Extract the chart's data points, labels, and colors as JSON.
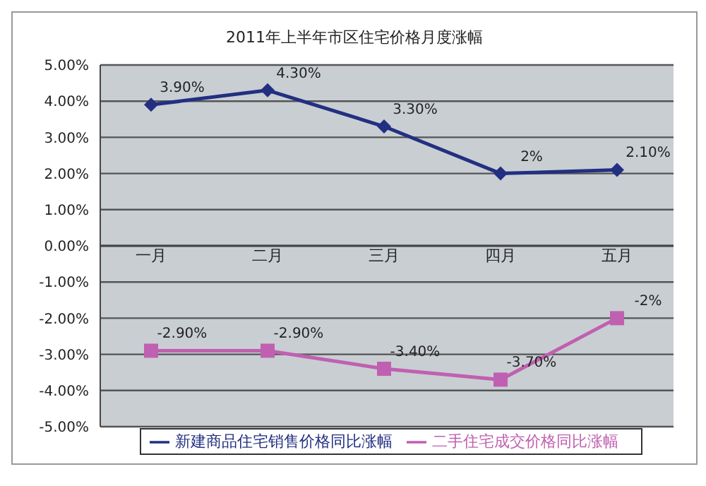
{
  "chart_data": {
    "type": "line",
    "title": "2011年上半年市区住宅价格月度涨幅",
    "categories": [
      "一月",
      "二月",
      "三月",
      "四月",
      "五月"
    ],
    "series": [
      {
        "name": "新建商品住宅销售价格同比涨幅",
        "color": "#232f80",
        "values": [
          3.9,
          4.3,
          3.3,
          2,
          2.1
        ],
        "value_labels": [
          "3.90%",
          "4.30%",
          "3.30%",
          "2%",
          "2.10%"
        ],
        "marker": "diamond"
      },
      {
        "name": "二手住宅成交价格同比涨幅",
        "color": "#c060b0",
        "values": [
          -2.9,
          -2.9,
          -3.4,
          -3.7,
          -2
        ],
        "value_labels": [
          "-2.90%",
          "-2.90%",
          "-3.40%",
          "-3.70%",
          "-2%"
        ],
        "marker": "square"
      }
    ],
    "ylim": [
      -5,
      5
    ],
    "yticks": [
      {
        "value": 5,
        "label": "5.00%"
      },
      {
        "value": 4,
        "label": "4.00%"
      },
      {
        "value": 3,
        "label": "3.00%"
      },
      {
        "value": 2,
        "label": "2.00%"
      },
      {
        "value": 1,
        "label": "1.00%"
      },
      {
        "value": 0,
        "label": "0.00%"
      },
      {
        "value": -1,
        "label": "-1.00%"
      },
      {
        "value": -2,
        "label": "-2.00%"
      },
      {
        "value": -3,
        "label": "-3.00%"
      },
      {
        "value": -4,
        "label": "-4.00%"
      },
      {
        "value": -5,
        "label": "-5.00%"
      }
    ],
    "grid": "y",
    "legend": "bottom",
    "line_style": "solid"
  }
}
